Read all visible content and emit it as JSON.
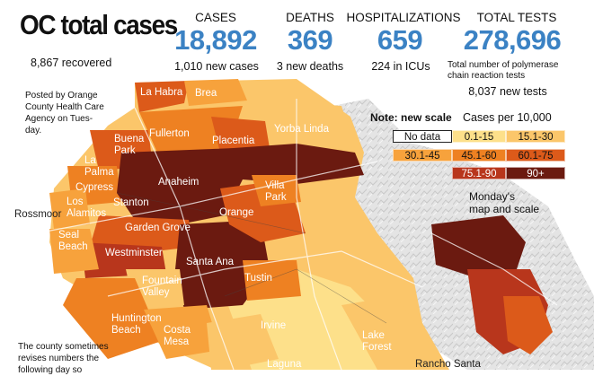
{
  "header": {
    "title": "OC total cases",
    "recovered": "8,867 recovered"
  },
  "stats": {
    "cases": {
      "label": "CASES",
      "value": "18,892",
      "sub": "1,010 new cases"
    },
    "deaths": {
      "label": "DEATHS",
      "value": "369",
      "sub": "3 new deaths"
    },
    "hospitalizations": {
      "label": "HOSPITALIZATIONS",
      "value": "659",
      "sub": "224 in ICUs"
    },
    "tests": {
      "label": "TOTAL TESTS",
      "value": "278,696",
      "sub_line1": "Total number of polymerase",
      "sub_line2": "chain reaction tests",
      "new": "8,037 new tests"
    }
  },
  "notes": {
    "posted_1": "Posted by Orange",
    "posted_2": "County Health Care",
    "posted_3": "Agency on Tues-",
    "posted_4": "day.",
    "revise_1": "The county sometimes",
    "revise_2": "revises numbers the",
    "revise_3": "following day so",
    "monday_1": "Monday's",
    "monday_2": "map and scale"
  },
  "legend": {
    "note": "Note: new scale",
    "title": "Cases per 10,000",
    "bins": [
      {
        "label": "No data",
        "color": "#ffffff"
      },
      {
        "label": "0.1-15",
        "color": "#fde08a"
      },
      {
        "label": "15.1-30",
        "color": "#fbc66a"
      },
      {
        "label": "30.1-45",
        "color": "#f7a23c"
      },
      {
        "label": "45.1-60",
        "color": "#ee8122"
      },
      {
        "label": "60.1-75",
        "color": "#dc5a1a"
      },
      {
        "label": "75.1-90",
        "color": "#b8361c"
      },
      {
        "label": "90+",
        "color": "#6b1a10"
      }
    ]
  },
  "places": {
    "la_habra": "La Habra",
    "brea": "Brea",
    "fullerton": "Fullerton",
    "placentia": "Placentia",
    "yorba_linda": "Yorba Linda",
    "buena_park_1": "Buena",
    "buena_park_2": "Park",
    "la": "La",
    "palma": "Palma",
    "cypress": "Cypress",
    "anaheim": "Anaheim",
    "villa_park_1": "Villa",
    "villa_park_2": "Park",
    "rossmoor": "Rossmoor",
    "los_alamitos_1": "Los",
    "los_alamitos_2": "Alamitos",
    "stanton": "Stanton",
    "orange": "Orange",
    "garden_grove": "Garden Grove",
    "seal_beach_1": "Seal",
    "seal_beach_2": "Beach",
    "westminster": "Westminster",
    "santa_ana": "Santa Ana",
    "fountain_valley_1": "Fountain",
    "fountain_valley_2": "Valley",
    "tustin": "Tustin",
    "huntington_beach_1": "Huntington",
    "huntington_beach_2": "Beach",
    "costa_mesa_1": "Costa",
    "costa_mesa_2": "Mesa",
    "irvine": "Irvine",
    "lake_forest_1": "Lake",
    "lake_forest_2": "Forest",
    "laguna": "Laguna",
    "rancho_santa": "Rancho Santa"
  },
  "colors": {
    "stat_blue": "#3b82c4",
    "terrain": "#d8d8d8",
    "bin_0": "#fde08a",
    "bin_1": "#fbc66a",
    "bin_2": "#f7a23c",
    "bin_3": "#ee8122",
    "bin_4": "#dc5a1a",
    "bin_5": "#b8361c",
    "bin_6": "#6b1a10"
  }
}
